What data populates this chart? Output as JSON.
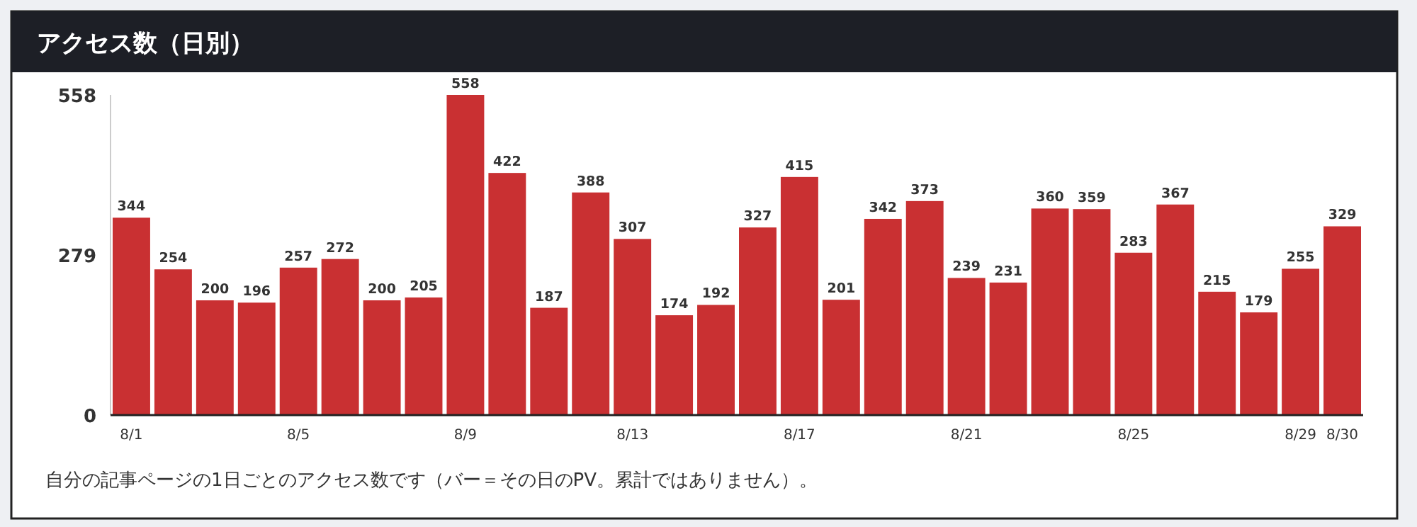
{
  "chart_data": {
    "type": "bar",
    "title": "アクセス数（日別）",
    "categories": [
      "8/1",
      null,
      null,
      null,
      "8/5",
      null,
      null,
      null,
      "8/9",
      null,
      null,
      null,
      "8/13",
      null,
      null,
      null,
      "8/17",
      null,
      null,
      null,
      "8/21",
      null,
      null,
      null,
      "8/25",
      null,
      null,
      null,
      "8/29",
      "8/30"
    ],
    "values": [
      344,
      254,
      200,
      196,
      257,
      272,
      200,
      205,
      558,
      422,
      187,
      388,
      307,
      174,
      192,
      327,
      415,
      201,
      342,
      373,
      239,
      231,
      360,
      359,
      283,
      367,
      215,
      179,
      255,
      329
    ],
    "color": "#c93032",
    "data_labels": true,
    "ylim": [
      0,
      558
    ],
    "yticks": [
      0,
      279,
      558
    ],
    "grid": false,
    "annotations": [
      "自分の記事ページの1日ごとのアクセス数です（バー＝その日のPV。累計ではありません）。"
    ]
  }
}
